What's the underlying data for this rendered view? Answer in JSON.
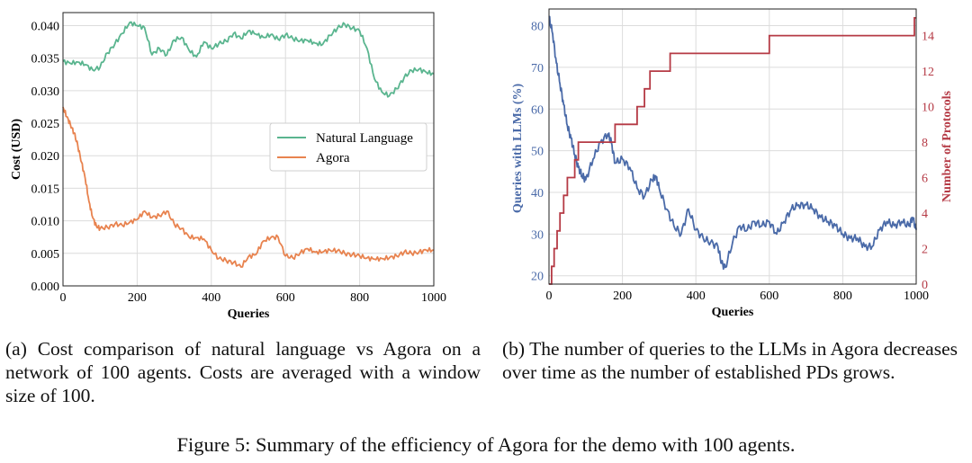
{
  "figure_caption": "Figure 5: Summary of the efficiency of Agora for the demo with 100 agents.",
  "captions": {
    "a": "(a) Cost comparison of natural language vs Agora on a network of 100 agents. Costs are averaged with a window size of 100.",
    "b": "(b) The number of queries to the LLMs in Agora decreases over time as the number of established PDs grows."
  },
  "colors": {
    "natural_language": "#5ab58f",
    "agora": "#e8834f",
    "queries": "#4a6aa8",
    "protocols": "#b53a45",
    "grid": "#dcdcdc"
  },
  "chart_data": [
    {
      "type": "line",
      "xlabel": "Queries",
      "ylabel": "Cost (USD)",
      "xlim": [
        0,
        1000
      ],
      "ylim": [
        0,
        0.042
      ],
      "xticks": [
        0,
        200,
        400,
        600,
        800,
        1000
      ],
      "yticks": [
        0.0,
        0.005,
        0.01,
        0.015,
        0.02,
        0.025,
        0.03,
        0.035,
        0.04
      ],
      "ytick_labels": [
        "0.000",
        "0.005",
        "0.010",
        "0.015",
        "0.020",
        "0.025",
        "0.030",
        "0.035",
        "0.040"
      ],
      "legend": [
        "Natural Language",
        "Agora"
      ],
      "legend_position": "center-right",
      "grid": true,
      "series": [
        {
          "name": "Natural Language",
          "x": [
            0,
            20,
            40,
            60,
            80,
            100,
            120,
            140,
            160,
            180,
            200,
            220,
            240,
            260,
            280,
            300,
            320,
            340,
            360,
            380,
            400,
            420,
            440,
            460,
            480,
            500,
            520,
            540,
            560,
            580,
            600,
            620,
            640,
            660,
            680,
            700,
            720,
            740,
            760,
            780,
            800,
            820,
            840,
            860,
            880,
            900,
            920,
            940,
            960,
            980,
            1000
          ],
          "values": [
            0.0345,
            0.0342,
            0.0344,
            0.034,
            0.0332,
            0.0336,
            0.0358,
            0.0372,
            0.0388,
            0.0405,
            0.04,
            0.0397,
            0.0355,
            0.0365,
            0.0355,
            0.0378,
            0.0382,
            0.0362,
            0.0352,
            0.0375,
            0.0365,
            0.0372,
            0.0376,
            0.0388,
            0.038,
            0.0392,
            0.0387,
            0.0382,
            0.0386,
            0.0379,
            0.0386,
            0.038,
            0.0377,
            0.0377,
            0.0373,
            0.0371,
            0.0385,
            0.0396,
            0.0402,
            0.0396,
            0.0392,
            0.0365,
            0.0318,
            0.0298,
            0.0292,
            0.0303,
            0.032,
            0.0331,
            0.0333,
            0.0328,
            0.0326
          ]
        },
        {
          "name": "Agora",
          "x": [
            0,
            10,
            20,
            30,
            40,
            50,
            60,
            70,
            80,
            90,
            100,
            120,
            140,
            160,
            180,
            200,
            220,
            240,
            260,
            280,
            300,
            320,
            340,
            360,
            380,
            400,
            420,
            440,
            460,
            480,
            500,
            520,
            540,
            560,
            580,
            600,
            620,
            640,
            660,
            680,
            700,
            720,
            740,
            760,
            780,
            800,
            820,
            840,
            860,
            880,
            900,
            920,
            940,
            960,
            980,
            1000
          ],
          "values": [
            0.0275,
            0.026,
            0.0248,
            0.0235,
            0.0215,
            0.019,
            0.0165,
            0.013,
            0.0105,
            0.0092,
            0.0088,
            0.009,
            0.0095,
            0.0093,
            0.0098,
            0.0102,
            0.0115,
            0.0105,
            0.0108,
            0.0115,
            0.0095,
            0.0088,
            0.0075,
            0.0074,
            0.0072,
            0.0055,
            0.0042,
            0.0039,
            0.0036,
            0.0029,
            0.0045,
            0.0048,
            0.0069,
            0.0074,
            0.0075,
            0.0046,
            0.0043,
            0.0051,
            0.0057,
            0.0052,
            0.0052,
            0.0055,
            0.0054,
            0.005,
            0.0048,
            0.0046,
            0.0043,
            0.0041,
            0.0042,
            0.0043,
            0.0046,
            0.0052,
            0.005,
            0.0052,
            0.0055,
            0.0055
          ]
        }
      ]
    },
    {
      "type": "line",
      "xlabel": "Queries",
      "ylabel": "Queries with LLMs (%)",
      "ylabel_right": "Number of Protocols",
      "xlim": [
        0,
        1000
      ],
      "ylim": [
        18,
        84
      ],
      "ylim_right": [
        0,
        15.5
      ],
      "xticks": [
        0,
        200,
        400,
        600,
        800,
        1000
      ],
      "yticks": [
        20,
        30,
        40,
        50,
        60,
        70,
        80
      ],
      "yticks_right": [
        0,
        2,
        4,
        6,
        8,
        10,
        12,
        14
      ],
      "grid": true,
      "series": [
        {
          "name": "Queries with LLMs (%)",
          "axis": "left",
          "x": [
            0,
            10,
            20,
            30,
            40,
            50,
            60,
            70,
            80,
            90,
            100,
            120,
            140,
            160,
            170,
            180,
            200,
            220,
            240,
            260,
            280,
            290,
            300,
            320,
            340,
            360,
            380,
            400,
            420,
            440,
            460,
            470,
            480,
            500,
            520,
            540,
            560,
            580,
            600,
            620,
            640,
            660,
            680,
            700,
            720,
            740,
            760,
            780,
            800,
            820,
            840,
            860,
            880,
            900,
            920,
            940,
            960,
            980,
            990,
            1000
          ],
          "values": [
            82,
            78,
            71,
            66,
            61,
            56,
            53,
            49,
            46,
            44,
            43,
            48,
            52,
            54,
            52,
            47,
            48,
            46,
            41,
            39,
            43,
            44,
            41,
            36,
            32,
            30,
            36,
            31,
            29,
            28,
            27,
            23,
            22,
            28,
            32,
            31,
            33,
            32,
            33,
            30,
            33,
            36,
            37,
            37,
            36,
            34,
            33,
            32,
            30,
            29,
            29,
            27,
            27,
            31,
            33,
            32,
            33,
            32,
            34,
            31
          ]
        },
        {
          "name": "Number of Protocols",
          "axis": "right",
          "step": true,
          "x": [
            0,
            7,
            14,
            22,
            30,
            40,
            50,
            60,
            70,
            80,
            150,
            180,
            240,
            260,
            275,
            290,
            330,
            350,
            600,
            995,
            1000
          ],
          "values": [
            0,
            1,
            2,
            3,
            4,
            5,
            6,
            6,
            7,
            8,
            8,
            9,
            10,
            11,
            12,
            12,
            13,
            13,
            14,
            15,
            15
          ]
        }
      ]
    }
  ]
}
